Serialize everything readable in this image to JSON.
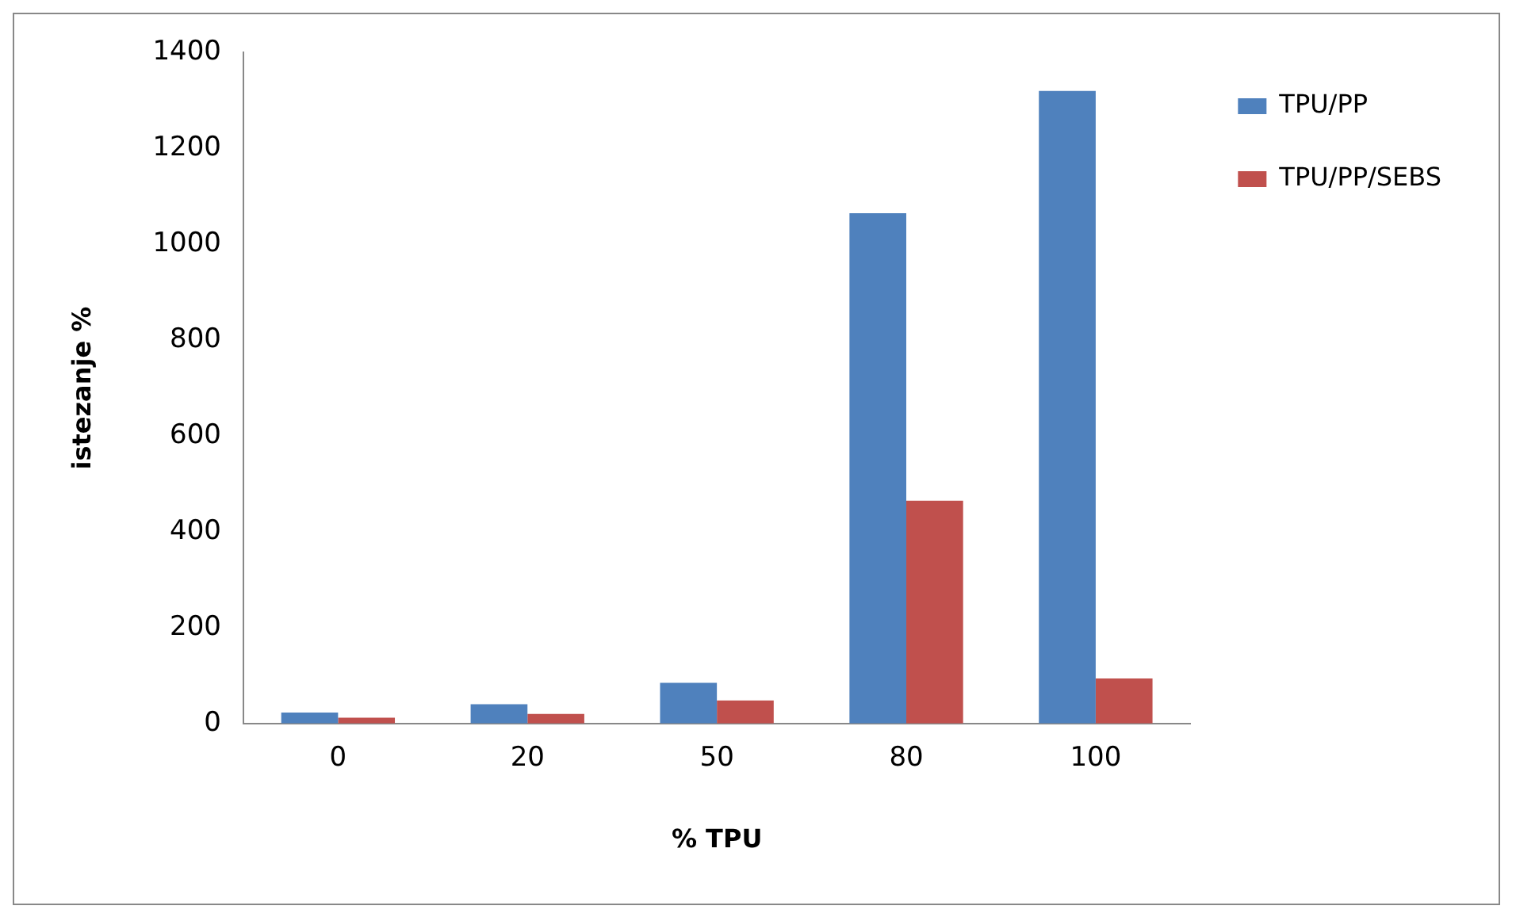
{
  "chart_data": {
    "type": "bar",
    "xlabel": "% TPU",
    "ylabel": "istezanje %",
    "categories": [
      "0",
      "20",
      "50",
      "80",
      "100"
    ],
    "series": [
      {
        "name": "TPU/PP",
        "color": "#4f81bd",
        "values": [
          23,
          40,
          85,
          1065,
          1320
        ]
      },
      {
        "name": "TPU/PP/SEBS",
        "color": "#c0504d",
        "values": [
          12,
          20,
          48,
          465,
          94
        ]
      }
    ],
    "ylim": [
      0,
      1400
    ],
    "yticks": [
      0,
      200,
      400,
      600,
      800,
      1000,
      1200,
      1400
    ],
    "grid": false,
    "legend": "top right"
  }
}
